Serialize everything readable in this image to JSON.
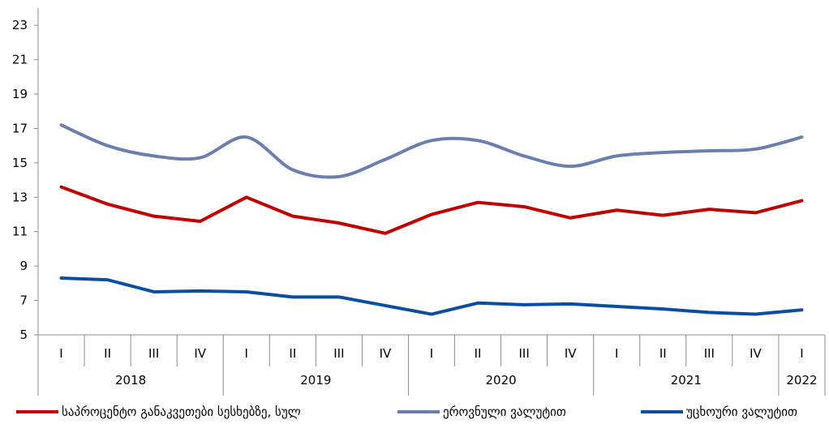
{
  "chart_data": {
    "type": "line",
    "title": "",
    "xlabel": "",
    "ylabel": "",
    "ylim": [
      5,
      24
    ],
    "yticks": [
      5,
      7,
      9,
      11,
      13,
      15,
      17,
      19,
      21,
      23
    ],
    "categories": [
      "I",
      "II",
      "III",
      "IV",
      "I",
      "II",
      "III",
      "IV",
      "I",
      "II",
      "III",
      "IV",
      "I",
      "II",
      "III",
      "IV",
      "I"
    ],
    "year_groups": [
      {
        "label": "2018",
        "count": 4
      },
      {
        "label": "2019",
        "count": 4
      },
      {
        "label": "2020",
        "count": 4
      },
      {
        "label": "2021",
        "count": 4
      },
      {
        "label": "2022",
        "count": 1
      }
    ],
    "series": [
      {
        "name": "საპროცენტო განაკვეთები სესხებზე, სულ",
        "color": "#C00000",
        "values": [
          13.6,
          12.6,
          11.9,
          11.6,
          13.0,
          11.9,
          11.5,
          10.9,
          12.0,
          12.7,
          12.45,
          11.8,
          12.25,
          11.95,
          12.3,
          12.1,
          12.8
        ]
      },
      {
        "name": "ეროვნული ვალუტით",
        "color": "#6B7FAE",
        "values": [
          17.2,
          16.0,
          15.4,
          15.3,
          16.5,
          14.6,
          14.2,
          15.2,
          16.3,
          16.3,
          15.4,
          14.8,
          15.4,
          15.6,
          15.7,
          15.8,
          16.5
        ]
      },
      {
        "name": "უცხოური ვალუტით",
        "color": "#0A4EA2",
        "values": [
          8.3,
          8.2,
          7.5,
          7.55,
          7.5,
          7.2,
          7.2,
          6.7,
          6.2,
          6.85,
          6.75,
          6.8,
          6.65,
          6.5,
          6.3,
          6.2,
          6.45
        ]
      }
    ],
    "grid": false,
    "legend_position": "bottom"
  }
}
